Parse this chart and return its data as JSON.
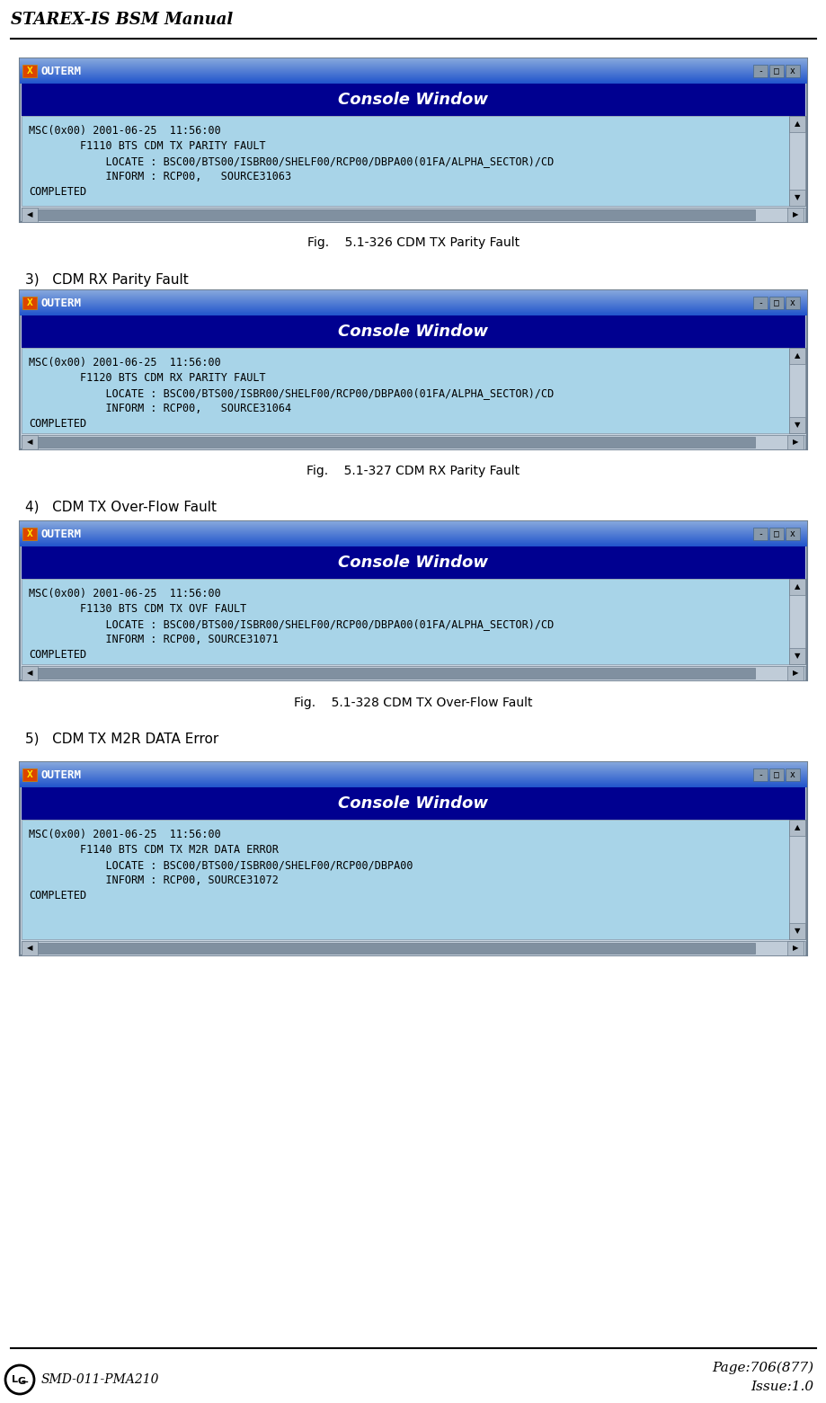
{
  "title": "STAREX-IS BSM Manual",
  "footer_left": "SMD-011-PMA210",
  "footer_right1": "Page:706(877)",
  "footer_right2": "Issue:1.0",
  "sections": [
    {
      "number": "",
      "label": "",
      "caption": "Fig.    5.1-326 CDM TX Parity Fault",
      "lines": [
        "MSC(0x00) 2001-06-25  11:56:00",
        "        F1110 BTS CDM TX PARITY FAULT",
        "            LOCATE : BSC00/BTS00/ISBR00/SHELF00/RCP00/DBPA00(01FA/ALPHA_SECTOR)/CD",
        "            INFORM : RCP00,   SOURCE31063",
        "COMPLETED"
      ]
    },
    {
      "number": "3)",
      "label": "CDM RX Parity Fault",
      "caption": "Fig.    5.1-327 CDM RX Parity Fault",
      "lines": [
        "MSC(0x00) 2001-06-25  11:56:00",
        "        F1120 BTS CDM RX PARITY FAULT",
        "            LOCATE : BSC00/BTS00/ISBR00/SHELF00/RCP00/DBPA00(01FA/ALPHA_SECTOR)/CD",
        "            INFORM : RCP00,   SOURCE31064",
        "COMPLETED"
      ]
    },
    {
      "number": "4)",
      "label": "CDM TX Over-Flow Fault",
      "caption": "Fig.    5.1-328 CDM TX Over-Flow Fault",
      "lines": [
        "MSC(0x00) 2001-06-25  11:56:00",
        "        F1130 BTS CDM TX OVF FAULT",
        "            LOCATE : BSC00/BTS00/ISBR00/SHELF00/RCP00/DBPA00(01FA/ALPHA_SECTOR)/CD",
        "            INFORM : RCP00, SOURCE31071",
        "COMPLETED"
      ]
    },
    {
      "number": "5)",
      "label": "CDM TX M2R DATA Error",
      "caption": "",
      "lines": [
        "MSC(0x00) 2001-06-25  11:56:00",
        "        F1140 BTS CDM TX M2R DATA ERROR",
        "            LOCATE : BSC00/BTS00/ISBR00/SHELF00/RCP00/DBPA00",
        "            INFORM : RCP00, SOURCE31072",
        "COMPLETED"
      ]
    }
  ],
  "titlebar_color": "#4488cc",
  "consolebar_color": "#000090",
  "terminal_bg": "#a8d0e0",
  "frame_bg": "#c0c8d8",
  "scrollbar_bg": "#b0c8d8",
  "win_border_color": "#607890"
}
